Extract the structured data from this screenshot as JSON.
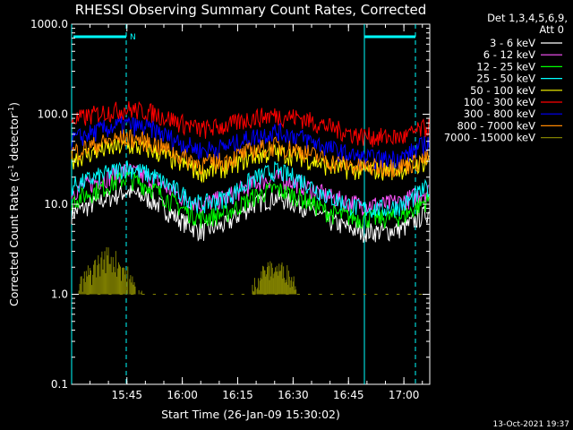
{
  "chart_data": {
    "type": "line",
    "title": "RHESSI Observing Summary Count Rates, Corrected",
    "xlabel": "Start Time (26-Jan-09 15:30:02)",
    "ylabel_main": "Corrected Count Rate (s",
    "ylabel_sup1": "-1",
    "ylabel_mid": " detector",
    "ylabel_sup2": "-1",
    "ylabel_end": ")",
    "y_scale": "log",
    "ylim": [
      0.1,
      1000
    ],
    "xlim": [
      "15:30:02",
      "17:07:00"
    ],
    "y_tick_labels": [
      "1000.0",
      "100.0",
      "10.0",
      "1.0",
      "0.1"
    ],
    "x_tick_labels": [
      "15:45",
      "16:00",
      "16:15",
      "16:30",
      "16:45",
      "17:00"
    ],
    "legend_header": [
      "Det 1,3,4,5,6,9,",
      "Att 0"
    ],
    "legend_placement": "right-outside",
    "timestamp": "13-Oct-2021 19:37",
    "flag_label": "N",
    "series": [
      {
        "name": "3 - 6 keV",
        "color": "#ffffff",
        "x": [
          "15:30",
          "15:38",
          "15:45",
          "15:52",
          "16:00",
          "16:05",
          "16:12",
          "16:19",
          "16:25",
          "16:32",
          "16:40",
          "16:48",
          "16:55",
          "17:00",
          "17:06"
        ],
        "values": [
          8,
          11,
          14,
          11,
          6.5,
          5,
          6,
          10,
          12,
          10,
          6.5,
          5,
          5,
          5.5,
          8
        ]
      },
      {
        "name": "6 - 12 keV",
        "color": "#ff55ff",
        "x": [
          "15:30",
          "15:38",
          "15:45",
          "15:52",
          "16:00",
          "16:05",
          "16:12",
          "16:19",
          "16:25",
          "16:32",
          "16:40",
          "16:48",
          "16:55",
          "17:00",
          "17:06"
        ],
        "values": [
          14,
          19,
          24,
          19,
          12,
          10,
          12,
          17,
          20,
          17,
          12,
          10,
          10,
          11,
          14
        ]
      },
      {
        "name": "12 - 25 keV",
        "color": "#00ff00",
        "x": [
          "15:30",
          "15:38",
          "15:45",
          "15:52",
          "16:00",
          "16:05",
          "16:12",
          "16:19",
          "16:25",
          "16:32",
          "16:40",
          "16:48",
          "16:55",
          "17:00",
          "17:06"
        ],
        "values": [
          11,
          15,
          20,
          15,
          9,
          7,
          8,
          12,
          15,
          12,
          8,
          7,
          7,
          7.5,
          11
        ]
      },
      {
        "name": "25 - 50 keV",
        "color": "#00ffff",
        "x": [
          "15:30",
          "15:38",
          "15:45",
          "15:52",
          "16:00",
          "16:05",
          "16:12",
          "16:19",
          "16:25",
          "16:32",
          "16:40",
          "16:48",
          "16:55",
          "17:00",
          "17:06"
        ],
        "values": [
          16,
          21,
          26,
          21,
          13,
          10,
          12,
          19,
          24,
          19,
          12,
          9,
          9,
          10,
          15
        ]
      },
      {
        "name": "50 - 100 keV",
        "color": "#ffff00",
        "x": [
          "15:30",
          "15:38",
          "15:45",
          "15:52",
          "16:00",
          "16:05",
          "16:12",
          "16:19",
          "16:25",
          "16:32",
          "16:40",
          "16:48",
          "16:55",
          "17:00",
          "17:06"
        ],
        "values": [
          32,
          40,
          45,
          40,
          28,
          23,
          26,
          34,
          38,
          34,
          26,
          24,
          24,
          25,
          30
        ]
      },
      {
        "name": "100 - 300 keV",
        "color": "#ff0000",
        "x": [
          "15:30",
          "15:38",
          "15:45",
          "15:52",
          "16:00",
          "16:05",
          "16:12",
          "16:19",
          "16:25",
          "16:32",
          "16:40",
          "16:48",
          "16:55",
          "17:00",
          "17:06"
        ],
        "values": [
          85,
          105,
          115,
          105,
          80,
          68,
          75,
          92,
          98,
          92,
          72,
          58,
          56,
          56,
          72
        ]
      },
      {
        "name": "300 - 800 keV",
        "color": "#0000ff",
        "x": [
          "15:30",
          "15:38",
          "15:45",
          "15:52",
          "16:00",
          "16:05",
          "16:12",
          "16:19",
          "16:25",
          "16:32",
          "16:40",
          "16:48",
          "16:55",
          "17:00",
          "17:06"
        ],
        "values": [
          52,
          68,
          78,
          68,
          48,
          40,
          44,
          56,
          65,
          56,
          42,
          33,
          32,
          34,
          48
        ]
      },
      {
        "name": "800 - 7000 keV",
        "color": "#ff8800",
        "x": [
          "15:30",
          "15:38",
          "15:45",
          "15:52",
          "16:00",
          "16:05",
          "16:12",
          "16:19",
          "16:25",
          "16:32",
          "16:40",
          "16:48",
          "16:55",
          "17:00",
          "17:06"
        ],
        "values": [
          38,
          48,
          56,
          48,
          34,
          28,
          31,
          40,
          45,
          40,
          30,
          26,
          26,
          27,
          32
        ]
      },
      {
        "name": "7000 - 15000 keV",
        "color": "#808000",
        "x": [
          "15:32",
          "15:36",
          "15:40",
          "15:44",
          "15:46",
          "15:49",
          "16:19",
          "16:22",
          "16:25",
          "16:28",
          "16:31",
          "17:05"
        ],
        "values": [
          1.3,
          2.2,
          3.0,
          2.2,
          1.5,
          1.0,
          1.2,
          1.9,
          2.0,
          1.9,
          1.3,
          1.0
        ]
      }
    ]
  }
}
